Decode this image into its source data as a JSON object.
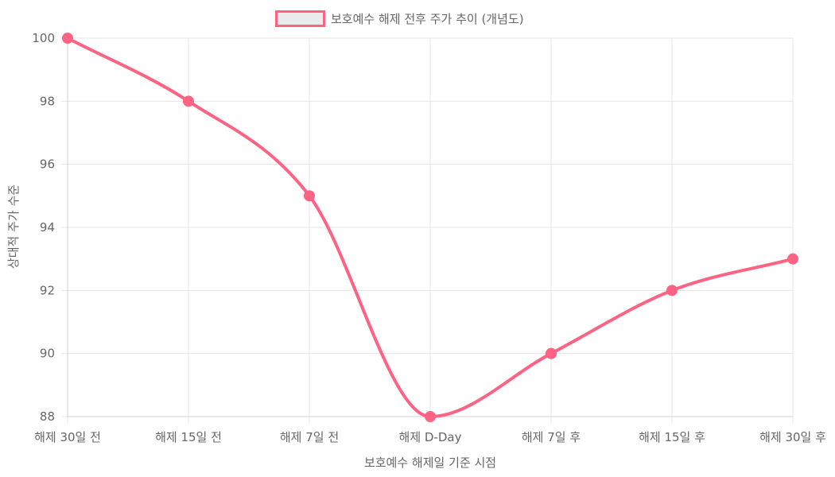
{
  "chart_data": {
    "type": "line",
    "categories": [
      "해제 30일 전",
      "해제 15일 전",
      "해제 7일 전",
      "해제 D-Day",
      "해제 7일 후",
      "해제 15일 후",
      "해제 30일 후"
    ],
    "series": [
      {
        "name": "보호예수 해제 전후 주가 추이 (개념도)",
        "values": [
          100,
          98,
          95,
          88,
          90,
          92,
          93
        ],
        "color": "#ff6384",
        "fill_color": "#ebebeb"
      }
    ],
    "xlabel": "보호예수 해제일 기준 시점",
    "ylabel": "상대적 주가 수준",
    "ylim": [
      88,
      100
    ],
    "yticks": [
      88,
      90,
      92,
      94,
      96,
      98,
      100
    ],
    "grid": true,
    "legend": "top-center",
    "colors": {
      "grid": "#e5e5e5",
      "tick_text": "#666666"
    }
  }
}
